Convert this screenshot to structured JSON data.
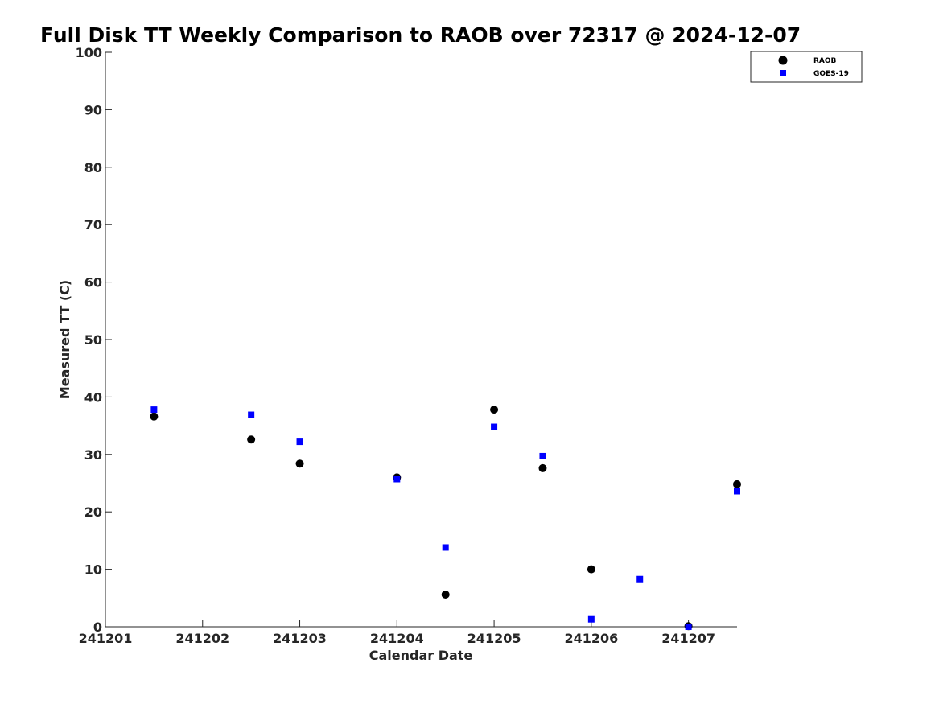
{
  "chart_data": {
    "type": "scatter",
    "title": "Full Disk TT Weekly Comparison to RAOB over 72317 @ 2024-12-07",
    "xlabel": "Calendar Date",
    "ylabel": "Measured TT (C)",
    "xlim": [
      "2024-12-01",
      "2024-12-07 12:00"
    ],
    "ylim": [
      0,
      100
    ],
    "x_ticks": [
      "241201",
      "241202",
      "241203",
      "241204",
      "241205",
      "241206",
      "241207"
    ],
    "y_ticks": [
      "0",
      "10",
      "20",
      "30",
      "40",
      "50",
      "60",
      "70",
      "80",
      "90",
      "100"
    ],
    "grid": false,
    "legend_position": "top-right",
    "series": [
      {
        "name": "RAOB",
        "marker": "circle",
        "color": "#000000",
        "x": [
          "2024-12-01 12:00",
          "2024-12-02 12:00",
          "2024-12-03 00:00",
          "2024-12-04 00:00",
          "2024-12-04 12:00",
          "2024-12-05 00:00",
          "2024-12-05 12:00",
          "2024-12-06 00:00",
          "2024-12-07 00:00",
          "2024-12-07 12:00"
        ],
        "y": [
          36.6,
          32.6,
          28.4,
          26.0,
          5.6,
          37.8,
          27.6,
          10.0,
          0.1,
          24.8
        ]
      },
      {
        "name": "GOES-19",
        "marker": "square",
        "color": "#0000ff",
        "x": [
          "2024-12-01 12:00",
          "2024-12-02 12:00",
          "2024-12-03 00:00",
          "2024-12-04 00:00",
          "2024-12-04 12:00",
          "2024-12-05 00:00",
          "2024-12-05 12:00",
          "2024-12-06 00:00",
          "2024-12-06 12:00",
          "2024-12-07 00:00",
          "2024-12-07 12:00"
        ],
        "y": [
          37.8,
          36.9,
          32.2,
          25.7,
          13.8,
          34.8,
          29.7,
          1.3,
          8.3,
          0.0,
          23.6
        ]
      }
    ]
  }
}
